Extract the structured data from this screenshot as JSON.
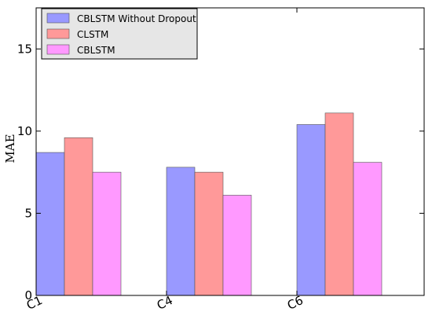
{
  "chart_data": {
    "type": "bar",
    "title": "",
    "xlabel": "",
    "ylabel": "MAE",
    "ylim": [
      0,
      17.5
    ],
    "yticks": [
      0,
      5,
      10,
      15
    ],
    "categories": [
      "C1",
      "C4",
      "C6"
    ],
    "series": [
      {
        "name": "CBLSTM Without Dropout",
        "values": [
          8.7,
          7.8,
          10.4
        ],
        "color": "#9999ff"
      },
      {
        "name": "CLSTM",
        "values": [
          9.6,
          7.5,
          11.1
        ],
        "color": "#ff9999"
      },
      {
        "name": "CBLSTM",
        "values": [
          7.5,
          6.1,
          8.1
        ],
        "color": "#ff99ff"
      }
    ],
    "grid": false,
    "legend_position": "top-left",
    "legend_background": "#e6e6e6",
    "xtick_rotation": "slanted"
  }
}
